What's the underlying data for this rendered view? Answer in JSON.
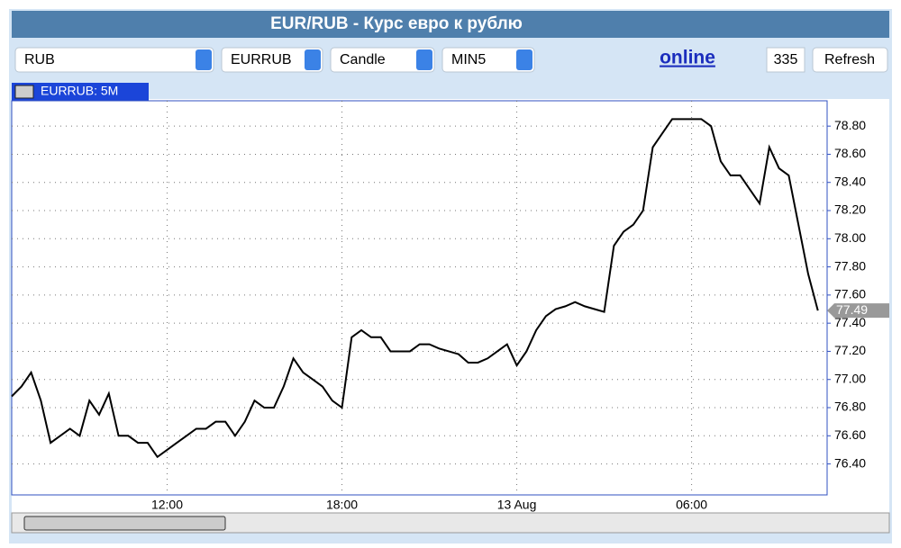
{
  "header": {
    "title": "EUR/RUB - Курс евро к рублю"
  },
  "controls": {
    "selects": [
      "RUB",
      "EURRUB",
      "Candle",
      "MIN5"
    ],
    "link": "online",
    "input": "335",
    "button": "Refresh"
  },
  "chart_data": {
    "type": "line",
    "title": "EURRUB: 5M",
    "color": "#000000",
    "categories": [
      null,
      null,
      null,
      null,
      null,
      null,
      null,
      null,
      null,
      null,
      null,
      null,
      null,
      null,
      null,
      null,
      "12:00",
      null,
      null,
      null,
      null,
      null,
      null,
      null,
      null,
      null,
      null,
      null,
      null,
      null,
      null,
      null,
      null,
      null,
      "18:00",
      null,
      null,
      null,
      null,
      null,
      null,
      null,
      null,
      null,
      null,
      null,
      null,
      null,
      null,
      null,
      null,
      null,
      "13 Aug",
      null,
      null,
      null,
      null,
      null,
      null,
      null,
      null,
      null,
      null,
      null,
      null,
      null,
      null,
      null,
      null,
      null,
      "06:00",
      null,
      null,
      null,
      null,
      null,
      null,
      null,
      null,
      null,
      null,
      null,
      null,
      null
    ],
    "values": [
      76.88,
      76.95,
      77.05,
      76.85,
      76.55,
      76.6,
      76.65,
      76.6,
      76.85,
      76.75,
      76.9,
      76.6,
      76.6,
      76.55,
      76.55,
      76.45,
      76.5,
      76.55,
      76.6,
      76.65,
      76.65,
      76.7,
      76.7,
      76.6,
      76.7,
      76.85,
      76.8,
      76.8,
      76.95,
      77.15,
      77.05,
      77.0,
      76.95,
      76.85,
      76.8,
      77.3,
      77.35,
      77.3,
      77.3,
      77.2,
      77.2,
      77.2,
      77.25,
      77.25,
      77.22,
      77.2,
      77.18,
      77.12,
      77.12,
      77.15,
      77.2,
      77.25,
      77.1,
      77.2,
      77.35,
      77.45,
      77.5,
      77.52,
      77.55,
      77.52,
      77.5,
      77.48,
      77.95,
      78.05,
      78.1,
      78.2,
      78.65,
      78.75,
      78.85,
      78.85,
      78.85,
      78.85,
      78.8,
      78.55,
      78.45,
      78.45,
      78.35,
      78.25,
      78.65,
      78.5,
      78.45,
      78.1,
      77.75,
      77.49
    ],
    "last_value": 77.49,
    "ylim": [
      76.18,
      78.98
    ],
    "yticks": [
      {
        "value": 76.4,
        "label": "76.40"
      },
      {
        "value": 76.6,
        "label": "76.60"
      },
      {
        "value": 76.8,
        "label": "76.80"
      },
      {
        "value": 77.0,
        "label": "77.00"
      },
      {
        "value": 77.2,
        "label": "77.20"
      },
      {
        "value": 77.4,
        "label": "77.40"
      },
      {
        "value": 77.6,
        "label": "77.60"
      },
      {
        "value": 77.8,
        "label": "77.80"
      },
      {
        "value": 78.0,
        "label": "78.00"
      },
      {
        "value": 78.2,
        "label": "78.20"
      },
      {
        "value": 78.4,
        "label": "78.40"
      },
      {
        "value": 78.6,
        "label": "78.60"
      },
      {
        "value": 78.8,
        "label": "78.80"
      }
    ],
    "grid": true
  }
}
